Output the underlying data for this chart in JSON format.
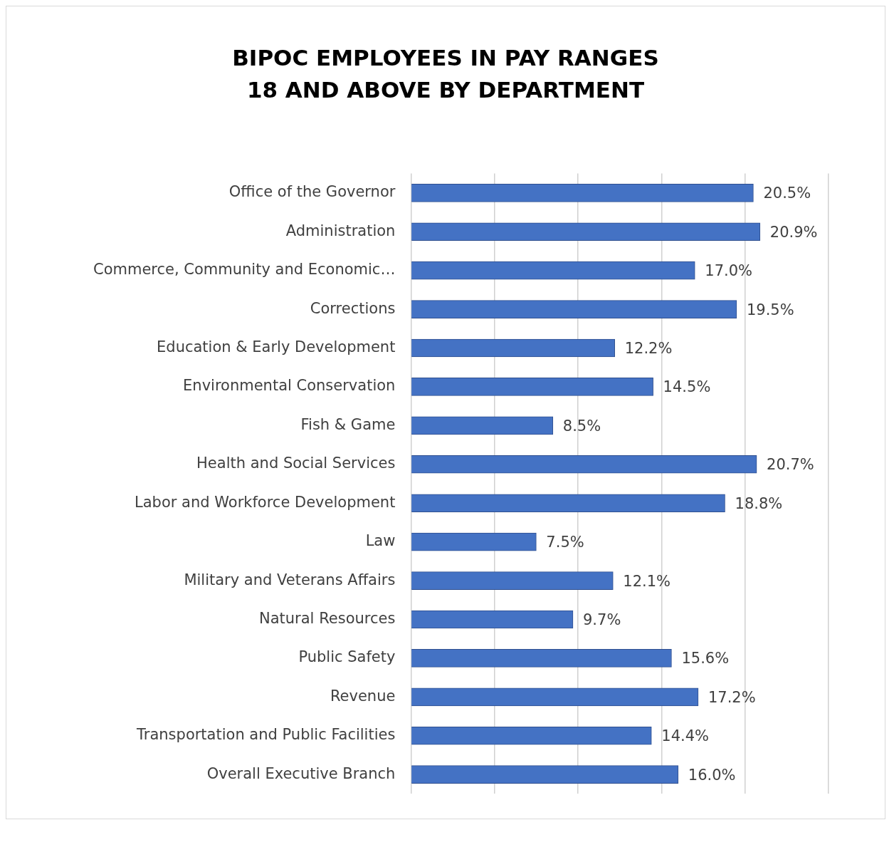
{
  "chart_data": {
    "type": "bar",
    "orientation": "horizontal",
    "title": "BIPOC EMPLOYEES IN PAY RANGES 18 AND ABOVE BY DEPARTMENT",
    "categories": [
      "Office of the Governor",
      "Administration",
      "Commerce, Community and Economic…",
      "Corrections",
      "Education & Early Development",
      "Environmental Conservation",
      "Fish & Game",
      "Health and Social Services",
      "Labor and Workforce Development",
      "Law",
      "Military and Veterans Affairs",
      "Natural Resources",
      "Public Safety",
      "Revenue",
      "Transportation and Public Facilities",
      "Overall Executive Branch"
    ],
    "values": [
      20.5,
      20.9,
      17.0,
      19.5,
      12.2,
      14.5,
      8.5,
      20.7,
      18.8,
      7.5,
      12.1,
      9.7,
      15.6,
      17.2,
      14.4,
      16.0
    ],
    "value_labels": [
      "20.5%",
      "20.9%",
      "17.0%",
      "19.5%",
      "12.2%",
      "14.5%",
      "8.5%",
      "20.7%",
      "18.8%",
      "7.5%",
      "12.1%",
      "9.7%",
      "15.6%",
      "17.2%",
      "14.4%",
      "16.0%"
    ],
    "color": "#4472c4",
    "xlim": [
      0,
      25
    ],
    "xticks": [
      {
        "value": 0,
        "label": null
      },
      {
        "value": 5,
        "label": null
      },
      {
        "value": 10,
        "label": null
      },
      {
        "value": 15,
        "label": null
      },
      {
        "value": 20,
        "label": null
      },
      {
        "value": 25,
        "label": null
      }
    ],
    "tick_labels": "y",
    "grid": "x",
    "legend": false
  }
}
